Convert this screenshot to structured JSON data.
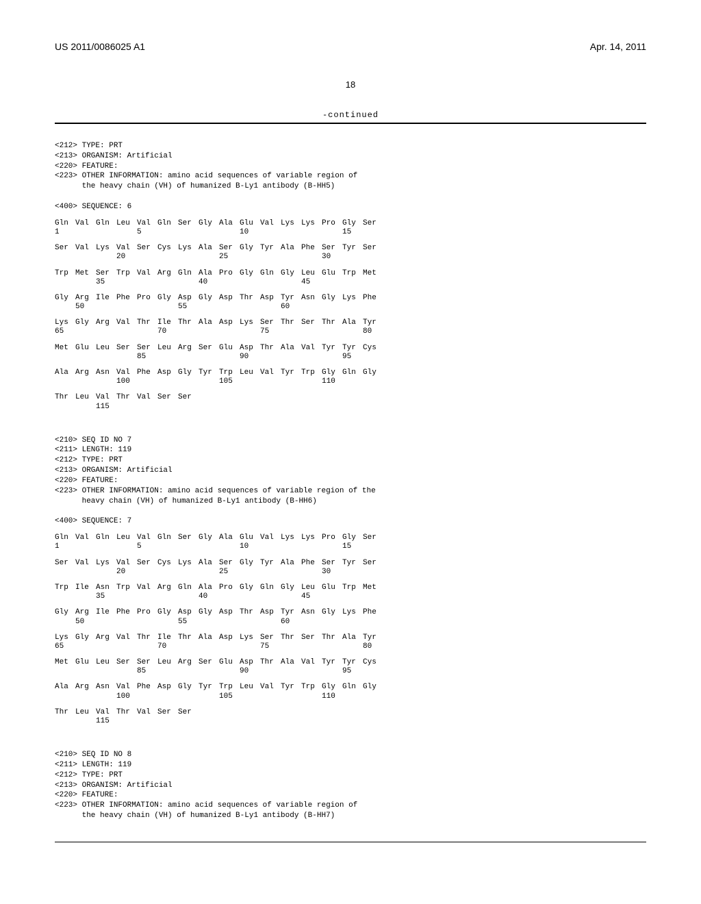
{
  "header": {
    "pub_number": "US 2011/0086025 A1",
    "pub_date": "Apr. 14, 2011"
  },
  "page_number": "18",
  "continued_label": "-continued",
  "meta6": {
    "l1": "<212> TYPE: PRT",
    "l2": "<213> ORGANISM: Artificial",
    "l3": "<220> FEATURE:",
    "l4": "<223> OTHER INFORMATION: amino acid sequences of variable region of",
    "l5": "      the heavy chain (VH) of humanized B-Ly1 antibody (B-HH5)",
    "seq": "<400> SEQUENCE: 6"
  },
  "seq6": {
    "rows": [
      {
        "res": [
          "Gln",
          "Val",
          "Gln",
          "Leu",
          "Val",
          "Gln",
          "Ser",
          "Gly",
          "Ala",
          "Glu",
          "Val",
          "Lys",
          "Lys",
          "Pro",
          "Gly",
          "Ser"
        ],
        "nums": [
          "1",
          "",
          "",
          "",
          "5",
          "",
          "",
          "",
          "",
          "10",
          "",
          "",
          "",
          "",
          "15",
          ""
        ]
      },
      {
        "res": [
          "Ser",
          "Val",
          "Lys",
          "Val",
          "Ser",
          "Cys",
          "Lys",
          "Ala",
          "Ser",
          "Gly",
          "Tyr",
          "Ala",
          "Phe",
          "Ser",
          "Tyr",
          "Ser"
        ],
        "nums": [
          "",
          "",
          "",
          "20",
          "",
          "",
          "",
          "",
          "25",
          "",
          "",
          "",
          "",
          "30",
          "",
          ""
        ]
      },
      {
        "res": [
          "Trp",
          "Met",
          "Ser",
          "Trp",
          "Val",
          "Arg",
          "Gln",
          "Ala",
          "Pro",
          "Gly",
          "Gln",
          "Gly",
          "Leu",
          "Glu",
          "Trp",
          "Met"
        ],
        "nums": [
          "",
          "",
          "35",
          "",
          "",
          "",
          "",
          "40",
          "",
          "",
          "",
          "",
          "45",
          "",
          "",
          ""
        ]
      },
      {
        "res": [
          "Gly",
          "Arg",
          "Ile",
          "Phe",
          "Pro",
          "Gly",
          "Asp",
          "Gly",
          "Asp",
          "Thr",
          "Asp",
          "Tyr",
          "Asn",
          "Gly",
          "Lys",
          "Phe"
        ],
        "nums": [
          "",
          "50",
          "",
          "",
          "",
          "",
          "55",
          "",
          "",
          "",
          "",
          "60",
          "",
          "",
          "",
          ""
        ]
      },
      {
        "res": [
          "Lys",
          "Gly",
          "Arg",
          "Val",
          "Thr",
          "Ile",
          "Thr",
          "Ala",
          "Asp",
          "Lys",
          "Ser",
          "Thr",
          "Ser",
          "Thr",
          "Ala",
          "Tyr"
        ],
        "nums": [
          "65",
          "",
          "",
          "",
          "",
          "70",
          "",
          "",
          "",
          "",
          "75",
          "",
          "",
          "",
          "",
          "80"
        ]
      },
      {
        "res": [
          "Met",
          "Glu",
          "Leu",
          "Ser",
          "Ser",
          "Leu",
          "Arg",
          "Ser",
          "Glu",
          "Asp",
          "Thr",
          "Ala",
          "Val",
          "Tyr",
          "Tyr",
          "Cys"
        ],
        "nums": [
          "",
          "",
          "",
          "",
          "85",
          "",
          "",
          "",
          "",
          "90",
          "",
          "",
          "",
          "",
          "95",
          ""
        ]
      },
      {
        "res": [
          "Ala",
          "Arg",
          "Asn",
          "Val",
          "Phe",
          "Asp",
          "Gly",
          "Tyr",
          "Trp",
          "Leu",
          "Val",
          "Tyr",
          "Trp",
          "Gly",
          "Gln",
          "Gly"
        ],
        "nums": [
          "",
          "",
          "",
          "100",
          "",
          "",
          "",
          "",
          "105",
          "",
          "",
          "",
          "",
          "110",
          "",
          ""
        ]
      },
      {
        "res": [
          "Thr",
          "Leu",
          "Val",
          "Thr",
          "Val",
          "Ser",
          "Ser"
        ],
        "nums": [
          "",
          "",
          "115",
          "",
          "",
          "",
          ""
        ]
      }
    ]
  },
  "meta7": {
    "l1": "<210> SEQ ID NO 7",
    "l2": "<211> LENGTH: 119",
    "l3": "<212> TYPE: PRT",
    "l4": "<213> ORGANISM: Artificial",
    "l5": "<220> FEATURE:",
    "l6": "<223> OTHER INFORMATION: amino acid sequences of variable region of the",
    "l7": "      heavy chain (VH) of humanized B-Ly1 antibody (B-HH6)",
    "seq": "<400> SEQUENCE: 7"
  },
  "seq7": {
    "rows": [
      {
        "res": [
          "Gln",
          "Val",
          "Gln",
          "Leu",
          "Val",
          "Gln",
          "Ser",
          "Gly",
          "Ala",
          "Glu",
          "Val",
          "Lys",
          "Lys",
          "Pro",
          "Gly",
          "Ser"
        ],
        "nums": [
          "1",
          "",
          "",
          "",
          "5",
          "",
          "",
          "",
          "",
          "10",
          "",
          "",
          "",
          "",
          "15",
          ""
        ]
      },
      {
        "res": [
          "Ser",
          "Val",
          "Lys",
          "Val",
          "Ser",
          "Cys",
          "Lys",
          "Ala",
          "Ser",
          "Gly",
          "Tyr",
          "Ala",
          "Phe",
          "Ser",
          "Tyr",
          "Ser"
        ],
        "nums": [
          "",
          "",
          "",
          "20",
          "",
          "",
          "",
          "",
          "25",
          "",
          "",
          "",
          "",
          "30",
          "",
          ""
        ]
      },
      {
        "res": [
          "Trp",
          "Ile",
          "Asn",
          "Trp",
          "Val",
          "Arg",
          "Gln",
          "Ala",
          "Pro",
          "Gly",
          "Gln",
          "Gly",
          "Leu",
          "Glu",
          "Trp",
          "Met"
        ],
        "nums": [
          "",
          "",
          "35",
          "",
          "",
          "",
          "",
          "40",
          "",
          "",
          "",
          "",
          "45",
          "",
          "",
          ""
        ]
      },
      {
        "res": [
          "Gly",
          "Arg",
          "Ile",
          "Phe",
          "Pro",
          "Gly",
          "Asp",
          "Gly",
          "Asp",
          "Thr",
          "Asp",
          "Tyr",
          "Asn",
          "Gly",
          "Lys",
          "Phe"
        ],
        "nums": [
          "",
          "50",
          "",
          "",
          "",
          "",
          "55",
          "",
          "",
          "",
          "",
          "60",
          "",
          "",
          "",
          ""
        ]
      },
      {
        "res": [
          "Lys",
          "Gly",
          "Arg",
          "Val",
          "Thr",
          "Ile",
          "Thr",
          "Ala",
          "Asp",
          "Lys",
          "Ser",
          "Thr",
          "Ser",
          "Thr",
          "Ala",
          "Tyr"
        ],
        "nums": [
          "65",
          "",
          "",
          "",
          "",
          "70",
          "",
          "",
          "",
          "",
          "75",
          "",
          "",
          "",
          "",
          "80"
        ]
      },
      {
        "res": [
          "Met",
          "Glu",
          "Leu",
          "Ser",
          "Ser",
          "Leu",
          "Arg",
          "Ser",
          "Glu",
          "Asp",
          "Thr",
          "Ala",
          "Val",
          "Tyr",
          "Tyr",
          "Cys"
        ],
        "nums": [
          "",
          "",
          "",
          "",
          "85",
          "",
          "",
          "",
          "",
          "90",
          "",
          "",
          "",
          "",
          "95",
          ""
        ]
      },
      {
        "res": [
          "Ala",
          "Arg",
          "Asn",
          "Val",
          "Phe",
          "Asp",
          "Gly",
          "Tyr",
          "Trp",
          "Leu",
          "Val",
          "Tyr",
          "Trp",
          "Gly",
          "Gln",
          "Gly"
        ],
        "nums": [
          "",
          "",
          "",
          "100",
          "",
          "",
          "",
          "",
          "105",
          "",
          "",
          "",
          "",
          "110",
          "",
          ""
        ]
      },
      {
        "res": [
          "Thr",
          "Leu",
          "Val",
          "Thr",
          "Val",
          "Ser",
          "Ser"
        ],
        "nums": [
          "",
          "",
          "115",
          "",
          "",
          "",
          ""
        ]
      }
    ]
  },
  "meta8": {
    "l1": "<210> SEQ ID NO 8",
    "l2": "<211> LENGTH: 119",
    "l3": "<212> TYPE: PRT",
    "l4": "<213> ORGANISM: Artificial",
    "l5": "<220> FEATURE:",
    "l6": "<223> OTHER INFORMATION: amino acid sequences of variable region of",
    "l7": "      the heavy chain (VH) of humanized B-Ly1 antibody (B-HH7)"
  }
}
